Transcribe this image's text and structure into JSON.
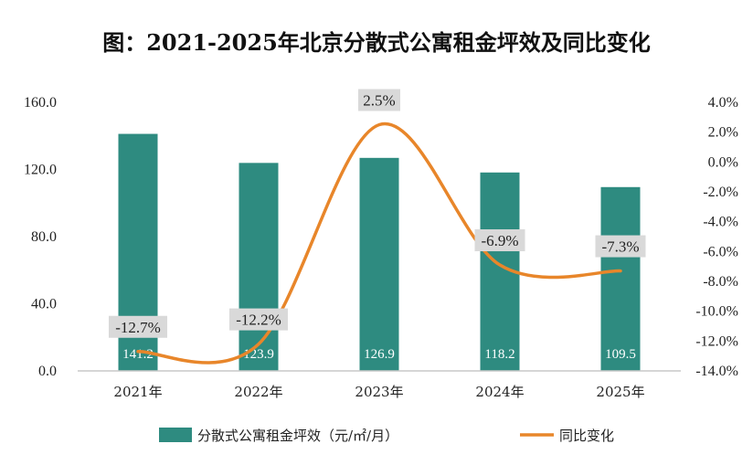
{
  "colors": {
    "bar": "#2e8b80",
    "line": "#e8862a",
    "label_box": "#d9d9d9",
    "axis": "#c9c9c9"
  },
  "chart_data": {
    "type": "bar+line",
    "title": "图：2021-2025年北京分散式公寓租金坪效及同比变化",
    "categories": [
      "2021年",
      "2022年",
      "2023年",
      "2024年",
      "2025年"
    ],
    "series": [
      {
        "name": "分散式公寓租金坪效（元/㎡/月）",
        "type": "bar",
        "axis": "left",
        "values": [
          141.2,
          123.9,
          126.9,
          118.2,
          109.5
        ],
        "labels": [
          "141.2",
          "123.9",
          "126.9",
          "118.2",
          "109.5"
        ]
      },
      {
        "name": "同比变化",
        "type": "line",
        "axis": "right",
        "values": [
          -12.7,
          -12.2,
          2.5,
          -6.9,
          -7.3
        ],
        "labels": [
          "-12.7%",
          "-12.2%",
          "2.5%",
          "-6.9%",
          "-7.3%"
        ]
      }
    ],
    "y_left": {
      "min": 0,
      "max": 160,
      "ticks": [
        0,
        40,
        80,
        120,
        160
      ],
      "tick_labels": [
        "0.0",
        "40.0",
        "80.0",
        "120.0",
        "160.0"
      ]
    },
    "y_right": {
      "min": -14,
      "max": 4,
      "ticks": [
        -14,
        -12,
        -10,
        -8,
        -6,
        -4,
        -2,
        0,
        2,
        4
      ],
      "tick_labels": [
        "-14.0%",
        "-12.0%",
        "-10.0%",
        "-8.0%",
        "-6.0%",
        "-4.0%",
        "-2.0%",
        "0.0%",
        "2.0%",
        "4.0%"
      ]
    },
    "legend": {
      "position": "bottom",
      "items": [
        "分散式公寓租金坪效（元/㎡/月）",
        "同比变化"
      ]
    },
    "grid": false
  }
}
